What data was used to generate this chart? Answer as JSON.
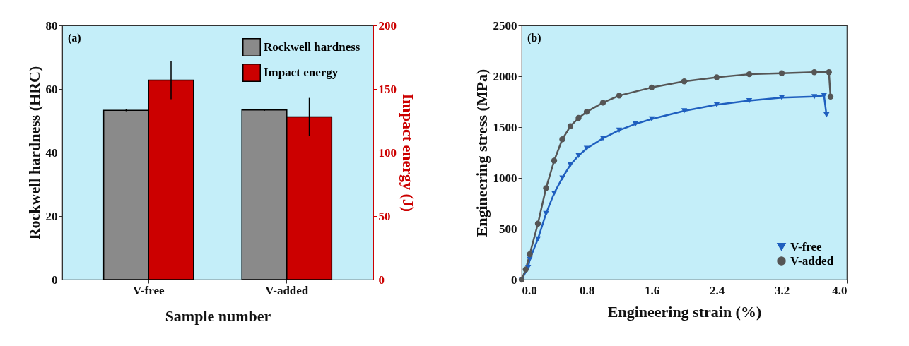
{
  "chart_data": [
    {
      "type": "bar",
      "xlabel": "Sample number",
      "ylabel": "Rockwell hardness (HRC)",
      "y2label": "Impact energy (J)",
      "categories": [
        "V-free",
        "V-added"
      ],
      "series": [
        {
          "name": "Rockwell hardness",
          "color": "#8a8a8a",
          "values": [
            53.3,
            53.4
          ],
          "errors": [
            0.3,
            0.3
          ]
        },
        {
          "name": "Impact energy",
          "color": "#cc0000",
          "values": [
            157,
            128
          ],
          "errors": [
            15,
            15
          ],
          "axis": "y2"
        }
      ],
      "ylim": [
        0,
        80
      ],
      "yticks": [
        0,
        20,
        40,
        60,
        80
      ],
      "y2lim": [
        0,
        200
      ],
      "y2ticks": [
        0,
        50,
        100,
        150,
        200
      ],
      "legend": "top right",
      "annotations": [
        "(a)"
      ]
    },
    {
      "type": "line",
      "xlabel": "Engineering strain (%)",
      "ylabel": "Engineering stress (MPa)",
      "series": [
        {
          "name": "V-free",
          "color": "#1f5fbf",
          "marker": "triangle",
          "x": [
            0,
            0.08,
            0.1,
            0.2,
            0.3,
            0.4,
            0.5,
            0.6,
            0.7,
            0.8,
            1.0,
            1.2,
            1.4,
            1.6,
            2.0,
            2.4,
            2.8,
            3.2,
            3.6,
            3.72,
            3.75
          ],
          "values": [
            0,
            120,
            200,
            400,
            650,
            850,
            1000,
            1130,
            1220,
            1290,
            1390,
            1470,
            1530,
            1580,
            1660,
            1720,
            1760,
            1790,
            1800,
            1810,
            1620
          ]
        },
        {
          "name": "V-added",
          "color": "#555555",
          "marker": "circle",
          "x": [
            0,
            0.05,
            0.1,
            0.2,
            0.3,
            0.4,
            0.5,
            0.6,
            0.7,
            0.8,
            1.0,
            1.2,
            1.6,
            2.0,
            2.4,
            2.8,
            3.2,
            3.6,
            3.78,
            3.8
          ],
          "values": [
            0,
            100,
            250,
            550,
            900,
            1170,
            1380,
            1510,
            1590,
            1650,
            1740,
            1810,
            1890,
            1950,
            1990,
            2020,
            2030,
            2040,
            2040,
            1800
          ]
        }
      ],
      "xlim": [
        0,
        4
      ],
      "xticks": [
        {
          "value": 0,
          "label": "0.0"
        },
        0.8,
        1.6,
        2.4,
        3.2,
        {
          "value": 4,
          "label": "4.0"
        }
      ],
      "ylim": [
        0,
        2500
      ],
      "yticks": [
        0,
        500,
        1000,
        1500,
        2000,
        2500
      ],
      "legend": "bottom right",
      "annotations": [
        "(b)"
      ]
    }
  ]
}
